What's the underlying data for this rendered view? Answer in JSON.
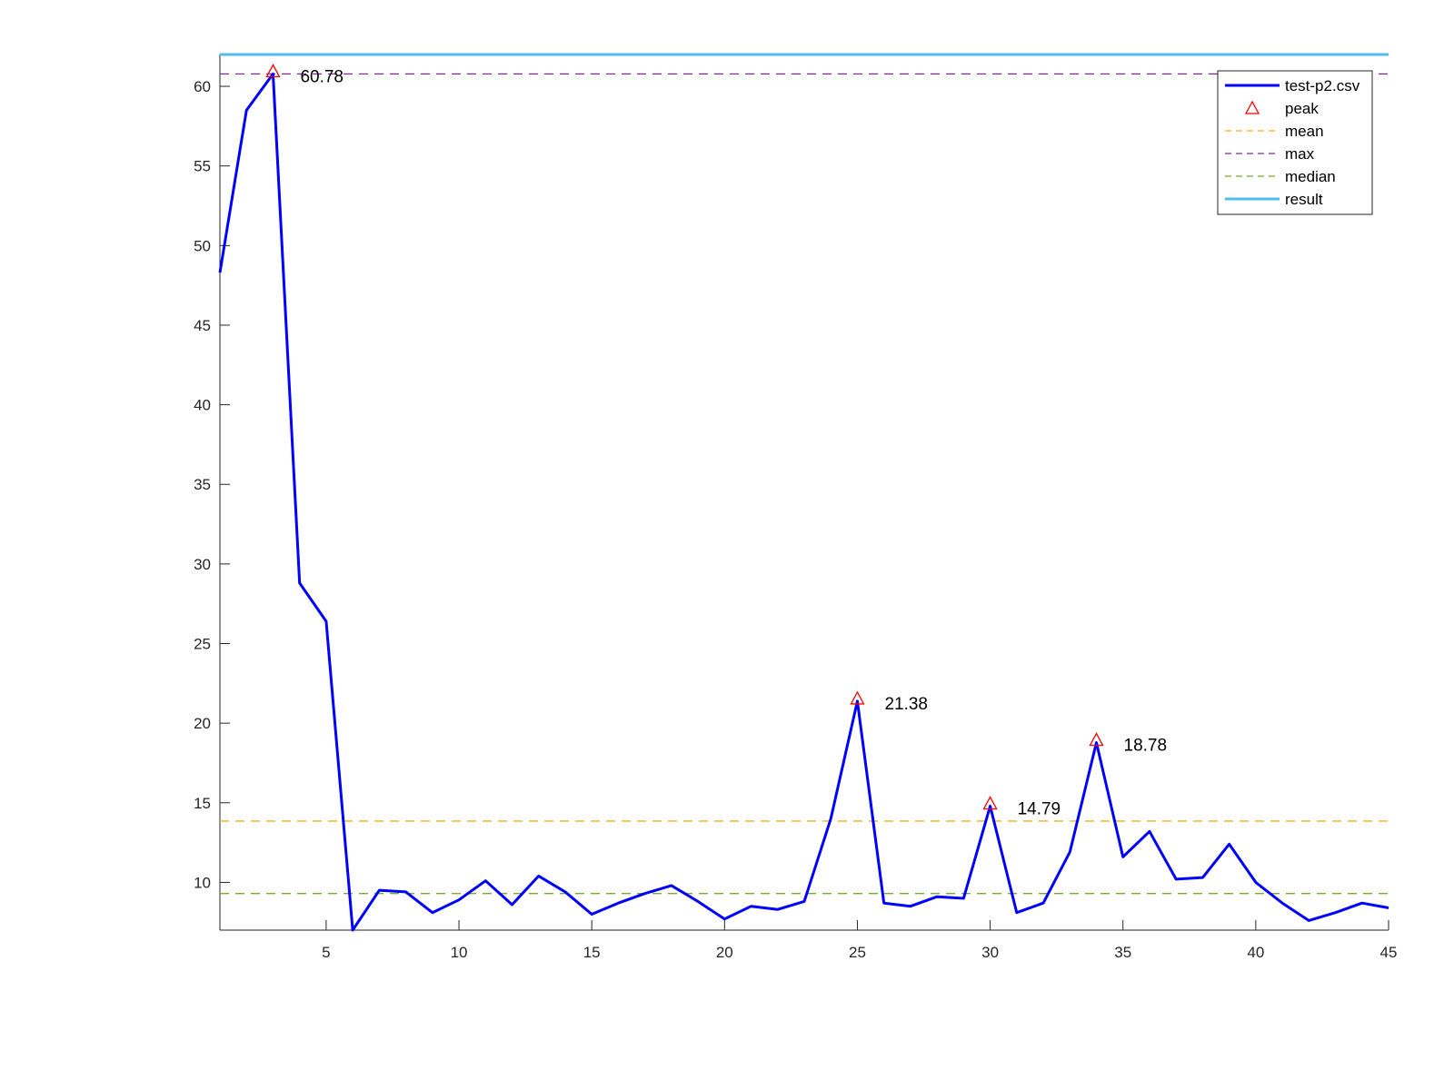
{
  "chart_data": {
    "type": "line",
    "title": "",
    "xlabel": "",
    "ylabel": "",
    "xlim": [
      1,
      45
    ],
    "ylim": [
      7,
      62
    ],
    "xticks": [
      5,
      10,
      15,
      20,
      25,
      30,
      35,
      40,
      45
    ],
    "yticks": [
      10,
      15,
      20,
      25,
      30,
      35,
      40,
      45,
      50,
      55,
      60
    ],
    "grid": false,
    "legend_position": "top-right",
    "series": [
      {
        "name": "test-p2.csv",
        "color": "#0000ff",
        "style": "solid",
        "x": [
          1,
          2,
          3,
          4,
          5,
          6,
          7,
          8,
          9,
          10,
          11,
          12,
          13,
          14,
          15,
          16,
          17,
          18,
          19,
          20,
          21,
          22,
          23,
          24,
          25,
          26,
          27,
          28,
          29,
          30,
          31,
          32,
          33,
          34,
          35,
          36,
          37,
          38,
          39,
          40,
          41,
          42,
          43,
          44,
          45
        ],
        "y": [
          48.3,
          58.5,
          60.78,
          28.8,
          26.4,
          7.0,
          9.5,
          9.4,
          8.1,
          8.9,
          10.1,
          8.6,
          10.4,
          9.4,
          8.0,
          8.7,
          9.3,
          9.8,
          8.8,
          7.7,
          8.5,
          8.3,
          8.8,
          14.0,
          21.38,
          8.7,
          8.5,
          9.1,
          9.0,
          14.79,
          8.1,
          8.7,
          11.9,
          18.78,
          11.6,
          13.2,
          10.2,
          10.3,
          12.4,
          10.0,
          8.7,
          7.6,
          8.1,
          8.7,
          8.4
        ]
      }
    ],
    "peaks": {
      "name": "peak",
      "color": "#ff0000",
      "marker": "triangle",
      "x": [
        3,
        25,
        30,
        34
      ],
      "y": [
        60.78,
        21.38,
        14.79,
        18.78
      ],
      "labels": [
        "60.78",
        "21.38",
        "14.79",
        "18.78"
      ]
    },
    "reference_lines": [
      {
        "name": "mean",
        "y": 13.85,
        "color": "#edb120",
        "style": "dashed"
      },
      {
        "name": "max",
        "y": 60.78,
        "color": "#7e2f8e",
        "style": "dashed"
      },
      {
        "name": "median",
        "y": 9.3,
        "color": "#77ac30",
        "style": "dashed"
      },
      {
        "name": "result",
        "y": 62,
        "color": "#4dbeee",
        "style": "solid"
      }
    ],
    "legend": [
      "test-p2.csv",
      "peak",
      "mean",
      "max",
      "median",
      "result"
    ]
  }
}
